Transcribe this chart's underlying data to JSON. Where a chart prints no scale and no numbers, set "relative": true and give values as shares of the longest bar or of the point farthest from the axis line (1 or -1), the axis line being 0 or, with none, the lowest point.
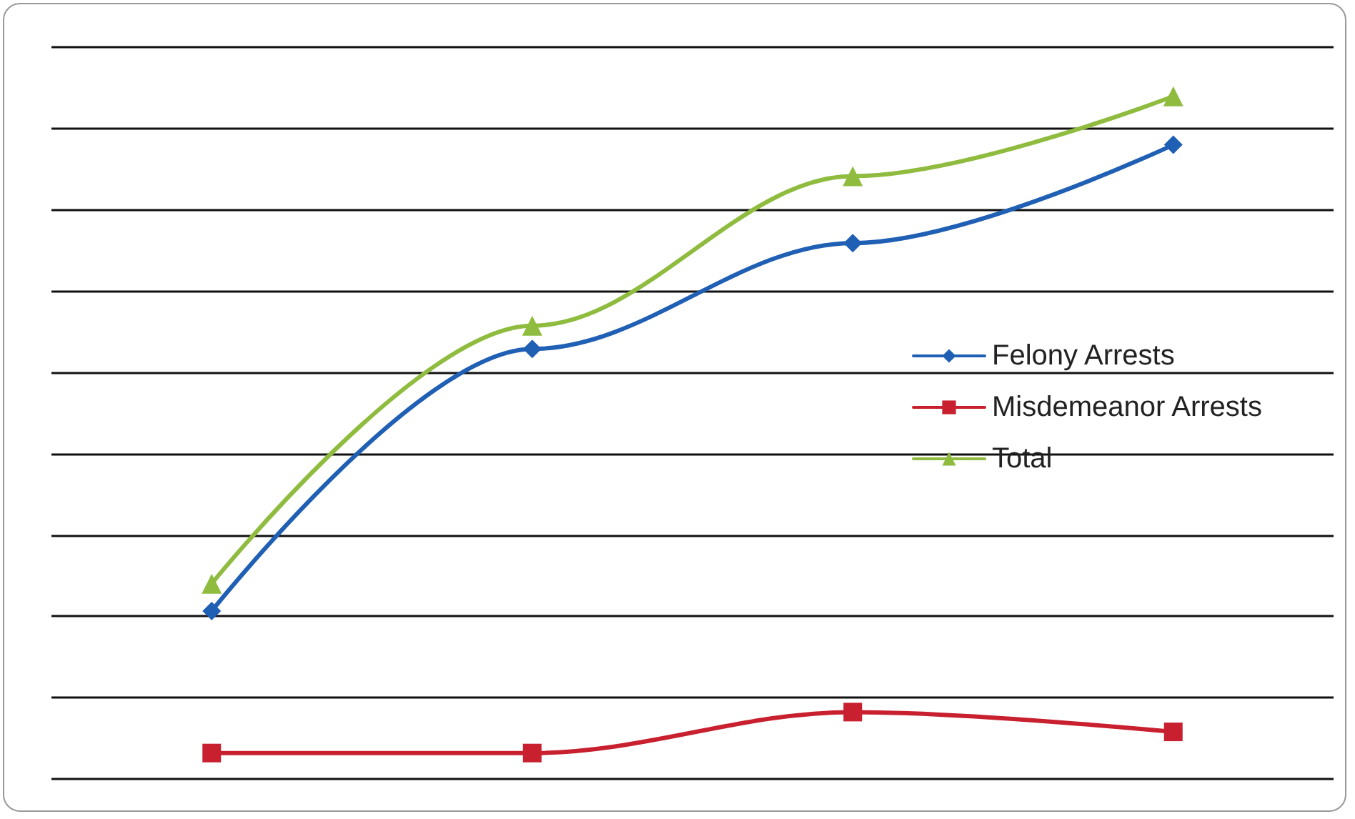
{
  "chart_data": {
    "type": "line",
    "relative": true,
    "grid": "y",
    "legend": "right",
    "categories": [
      null,
      null,
      null,
      null
    ],
    "series": [
      {
        "name": "Felony Arrests",
        "color": "#1f5fb4",
        "marker": "diamond",
        "values": [
          0.246,
          0.63,
          0.785,
          0.929
        ]
      },
      {
        "name": "Misdemeanor Arrests",
        "color": "#c8202f",
        "marker": "square",
        "values": [
          0.038,
          0.038,
          0.098,
          0.069
        ]
      },
      {
        "name": "Total",
        "color": "#8fbc3f",
        "marker": "triangle",
        "values": [
          0.286,
          0.664,
          0.883,
          1
        ]
      }
    ]
  }
}
